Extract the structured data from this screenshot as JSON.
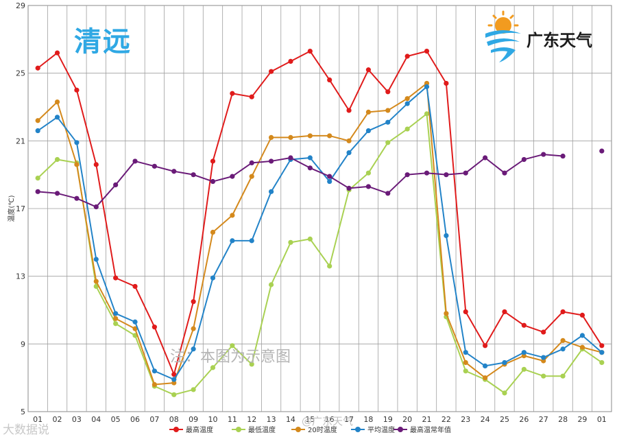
{
  "city": "清远",
  "brand": "广东天气",
  "watermark": "注：本图为示意图",
  "credit_left": "大数据说",
  "credit_center": "@广东天气",
  "chart_data": {
    "type": "line",
    "ylabel": "温度(℃)",
    "ylim": [
      5,
      29
    ],
    "yticks": [
      5,
      9,
      13,
      17,
      21,
      25,
      29
    ],
    "grid": true,
    "legend_position": "bottom",
    "categories": [
      "01",
      "02",
      "03",
      "04",
      "05",
      "06",
      "07",
      "08",
      "09",
      "10",
      "11",
      "12",
      "13",
      "14",
      "15",
      "16",
      "17",
      "18",
      "19",
      "20",
      "21",
      "22",
      "23",
      "24",
      "25",
      "26",
      "27",
      "28",
      "29",
      "01"
    ],
    "series": [
      {
        "name": "最高温度",
        "color": "#e01b1b",
        "values": [
          25.3,
          26.2,
          24.0,
          19.6,
          12.9,
          12.4,
          10.0,
          7.2,
          11.5,
          19.8,
          23.8,
          23.6,
          25.1,
          25.7,
          26.3,
          24.6,
          22.8,
          25.2,
          23.9,
          26.0,
          26.3,
          24.4,
          10.9,
          8.9,
          10.9,
          10.1,
          9.7,
          10.9,
          10.7,
          8.9
        ]
      },
      {
        "name": "最低温度",
        "color": "#a9d152",
        "values": [
          18.8,
          19.9,
          19.7,
          12.4,
          10.2,
          9.5,
          6.5,
          6.0,
          6.3,
          7.6,
          8.9,
          7.8,
          12.5,
          15.0,
          15.2,
          13.6,
          18.1,
          19.1,
          20.9,
          21.7,
          22.6,
          10.6,
          7.4,
          6.9,
          6.1,
          7.5,
          7.1,
          7.1,
          8.7,
          7.9
        ]
      },
      {
        "name": "20时温度",
        "color": "#d4891c",
        "values": [
          22.2,
          23.3,
          19.6,
          12.7,
          10.5,
          9.9,
          6.6,
          6.7,
          9.9,
          15.6,
          16.6,
          18.9,
          21.2,
          21.2,
          21.3,
          21.3,
          21.0,
          22.7,
          22.8,
          23.5,
          24.4,
          10.8,
          7.9,
          7.0,
          7.8,
          8.3,
          8.0,
          9.2,
          8.8,
          8.5
        ]
      },
      {
        "name": "平均温度",
        "color": "#2283c8",
        "values": [
          21.6,
          22.4,
          20.9,
          14.0,
          10.8,
          10.3,
          7.4,
          6.9,
          8.7,
          12.9,
          15.1,
          15.1,
          18.0,
          19.9,
          20.0,
          18.6,
          20.3,
          21.6,
          22.1,
          23.2,
          24.2,
          15.4,
          8.5,
          7.7,
          7.9,
          8.5,
          8.2,
          8.7,
          9.5,
          8.5
        ]
      },
      {
        "name": "最高温常年值",
        "color": "#6a1b78",
        "values": [
          18.0,
          17.9,
          17.6,
          17.1,
          18.4,
          19.8,
          19.5,
          19.2,
          19.0,
          18.6,
          18.9,
          19.7,
          19.8,
          20.0,
          19.4,
          18.9,
          18.2,
          18.3,
          17.9,
          19.0,
          19.1,
          19.0,
          19.1,
          20.0,
          19.1,
          19.9,
          20.2,
          20.1,
          null,
          20.4
        ]
      }
    ]
  }
}
